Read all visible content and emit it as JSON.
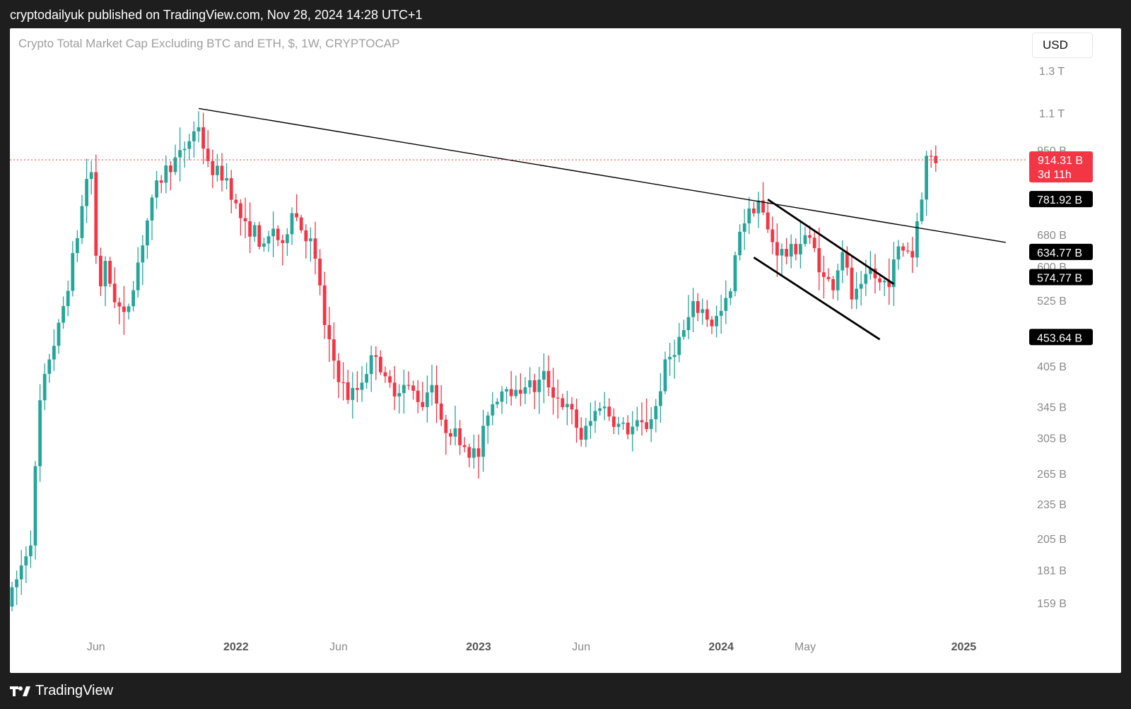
{
  "header": {
    "publisher_line": "cryptodailyuk published on TradingView.com, Nov 28, 2024 14:28 UTC+1"
  },
  "chart_title": "Crypto Total Market Cap Excluding BTC and ETH, $, 1W, CRYPTOCAP",
  "currency_button": "USD",
  "footer": {
    "brand": "TradingView"
  },
  "colors": {
    "up": "#26a69a",
    "down": "#f23645",
    "price_tag": "#f23645",
    "trendline": "#000000"
  },
  "chart_data": {
    "type": "candlestick",
    "scale": "log",
    "y_axis": {
      "ticks": [
        {
          "label": "1.3 T",
          "value": 1300
        },
        {
          "label": "1.1 T",
          "value": 1100
        },
        {
          "label": "950 B",
          "value": 950
        },
        {
          "label": "680 B",
          "value": 680
        },
        {
          "label": "600 B",
          "value": 600
        },
        {
          "label": "525 B",
          "value": 525
        },
        {
          "label": "405 B",
          "value": 405
        },
        {
          "label": "345 B",
          "value": 345
        },
        {
          "label": "305 B",
          "value": 305
        },
        {
          "label": "265 B",
          "value": 265
        },
        {
          "label": "235 B",
          "value": 235
        },
        {
          "label": "205 B",
          "value": 205
        },
        {
          "label": "181 B",
          "value": 181
        },
        {
          "label": "159 B",
          "value": 159
        }
      ]
    },
    "x_axis": {
      "ticks": [
        {
          "label": "Jun",
          "week": 18,
          "bold": false
        },
        {
          "label": "2022",
          "week": 48,
          "bold": true
        },
        {
          "label": "Jun",
          "week": 70,
          "bold": false
        },
        {
          "label": "2023",
          "week": 100,
          "bold": true
        },
        {
          "label": "Jun",
          "week": 122,
          "bold": false
        },
        {
          "label": "2024",
          "week": 152,
          "bold": true
        },
        {
          "label": "May",
          "week": 170,
          "bold": false
        },
        {
          "label": "2025",
          "week": 204,
          "bold": true
        }
      ]
    },
    "price_labels": [
      {
        "value": "914.31 B",
        "sub": "3d 11h",
        "price": 914.31,
        "current": true
      },
      {
        "value": "781.92 B",
        "price": 781.92,
        "current": false
      },
      {
        "value": "634.77 B",
        "price": 634.77,
        "current": false
      },
      {
        "value": "574.77 B",
        "price": 574.77,
        "current": false
      },
      {
        "value": "453.64 B",
        "price": 453.64,
        "current": false
      }
    ],
    "trendlines": [
      {
        "name": "long-term-resistance",
        "from": {
          "week": 40,
          "value": 1120
        },
        "to": {
          "week": 213,
          "value": 660
        }
      },
      {
        "name": "flag-upper",
        "from": {
          "week": 162,
          "value": 782
        },
        "to": {
          "week": 189,
          "value": 560
        }
      },
      {
        "name": "flag-lower",
        "from": {
          "week": 159,
          "value": 622
        },
        "to": {
          "week": 186,
          "value": 450
        }
      }
    ],
    "anchors": [
      [
        0,
        165
      ],
      [
        4,
        205
      ],
      [
        6,
        350
      ],
      [
        8,
        420
      ],
      [
        10,
        470
      ],
      [
        12,
        560
      ],
      [
        14,
        680
      ],
      [
        16,
        850
      ],
      [
        17,
        870
      ],
      [
        18,
        630
      ],
      [
        19,
        560
      ],
      [
        20,
        600
      ],
      [
        22,
        530
      ],
      [
        24,
        490
      ],
      [
        25,
        520
      ],
      [
        27,
        610
      ],
      [
        29,
        720
      ],
      [
        31,
        820
      ],
      [
        33,
        880
      ],
      [
        36,
        930
      ],
      [
        38,
        990
      ],
      [
        40,
        1050
      ],
      [
        42,
        890
      ],
      [
        44,
        870
      ],
      [
        46,
        850
      ],
      [
        48,
        760
      ],
      [
        50,
        700
      ],
      [
        52,
        690
      ],
      [
        54,
        640
      ],
      [
        56,
        700
      ],
      [
        58,
        640
      ],
      [
        60,
        760
      ],
      [
        62,
        700
      ],
      [
        64,
        660
      ],
      [
        66,
        560
      ],
      [
        67,
        470
      ],
      [
        68,
        440
      ],
      [
        70,
        390
      ],
      [
        72,
        360
      ],
      [
        74,
        370
      ],
      [
        76,
        400
      ],
      [
        78,
        430
      ],
      [
        80,
        380
      ],
      [
        82,
        370
      ],
      [
        84,
        375
      ],
      [
        86,
        365
      ],
      [
        88,
        350
      ],
      [
        90,
        385
      ],
      [
        92,
        320
      ],
      [
        94,
        315
      ],
      [
        96,
        305
      ],
      [
        98,
        290
      ],
      [
        100,
        285
      ],
      [
        102,
        340
      ],
      [
        104,
        360
      ],
      [
        106,
        380
      ],
      [
        108,
        360
      ],
      [
        110,
        380
      ],
      [
        112,
        370
      ],
      [
        114,
        390
      ],
      [
        116,
        365
      ],
      [
        118,
        350
      ],
      [
        120,
        335
      ],
      [
        122,
        305
      ],
      [
        124,
        325
      ],
      [
        126,
        350
      ],
      [
        128,
        335
      ],
      [
        130,
        320
      ],
      [
        132,
        315
      ],
      [
        134,
        320
      ],
      [
        136,
        320
      ],
      [
        138,
        345
      ],
      [
        140,
        405
      ],
      [
        142,
        435
      ],
      [
        144,
        465
      ],
      [
        146,
        510
      ],
      [
        148,
        505
      ],
      [
        150,
        480
      ],
      [
        152,
        500
      ],
      [
        154,
        540
      ],
      [
        156,
        700
      ],
      [
        158,
        740
      ],
      [
        160,
        780
      ],
      [
        162,
        690
      ],
      [
        164,
        640
      ],
      [
        166,
        630
      ],
      [
        168,
        645
      ],
      [
        170,
        680
      ],
      [
        172,
        640
      ],
      [
        174,
        570
      ],
      [
        176,
        560
      ],
      [
        178,
        645
      ],
      [
        180,
        530
      ],
      [
        182,
        545
      ],
      [
        184,
        590
      ],
      [
        186,
        560
      ],
      [
        188,
        570
      ],
      [
        190,
        640
      ],
      [
        192,
        645
      ],
      [
        193,
        625
      ],
      [
        194,
        720
      ],
      [
        195,
        800
      ],
      [
        196,
        920
      ],
      [
        197,
        925
      ],
      [
        198,
        914
      ]
    ]
  }
}
